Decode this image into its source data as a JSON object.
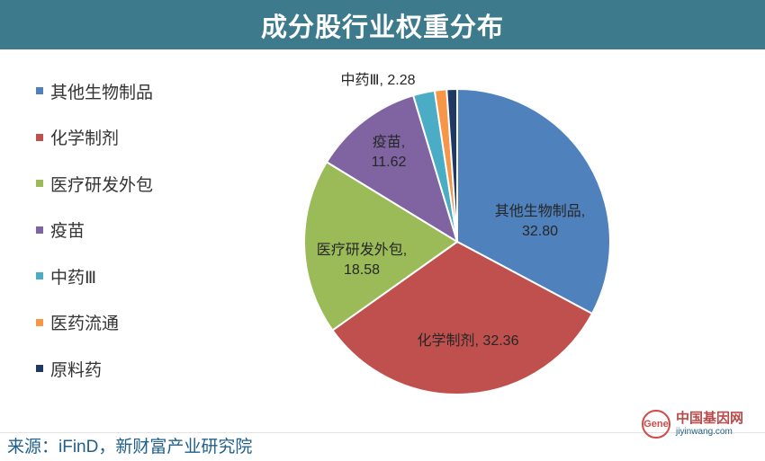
{
  "header": {
    "title": "成分股行业权重分布"
  },
  "chart_data": {
    "type": "pie",
    "title": "成分股行业权重分布",
    "legend_position": "left",
    "slices": [
      {
        "name": "其他生物制品",
        "value": 32.8,
        "label": "其他生物制品,\n32.80",
        "color": "#4f81bd"
      },
      {
        "name": "化学制剂",
        "value": 32.36,
        "label": "化学制剂, 32.36",
        "color": "#c0504d"
      },
      {
        "name": "医疗研发外包",
        "value": 18.58,
        "label": "医疗研发外包,\n18.58",
        "color": "#9bbb59"
      },
      {
        "name": "疫苗",
        "value": 11.62,
        "label": "疫苗,\n11.62",
        "color": "#8064a2"
      },
      {
        "name": "中药Ⅲ",
        "value": 2.28,
        "label": "中药Ⅲ, 2.28",
        "color": "#4bacc6"
      },
      {
        "name": "医药流通",
        "value": 1.26,
        "label": "",
        "color": "#f79646"
      },
      {
        "name": "原料药",
        "value": 1.1,
        "label": "",
        "color": "#1f3864"
      }
    ]
  },
  "source": {
    "text": "来源：iFinD，新财富产业研究院"
  },
  "watermark": {
    "cn": "中国基因网",
    "en": "jiyinwang.com",
    "logo": "Gene"
  }
}
